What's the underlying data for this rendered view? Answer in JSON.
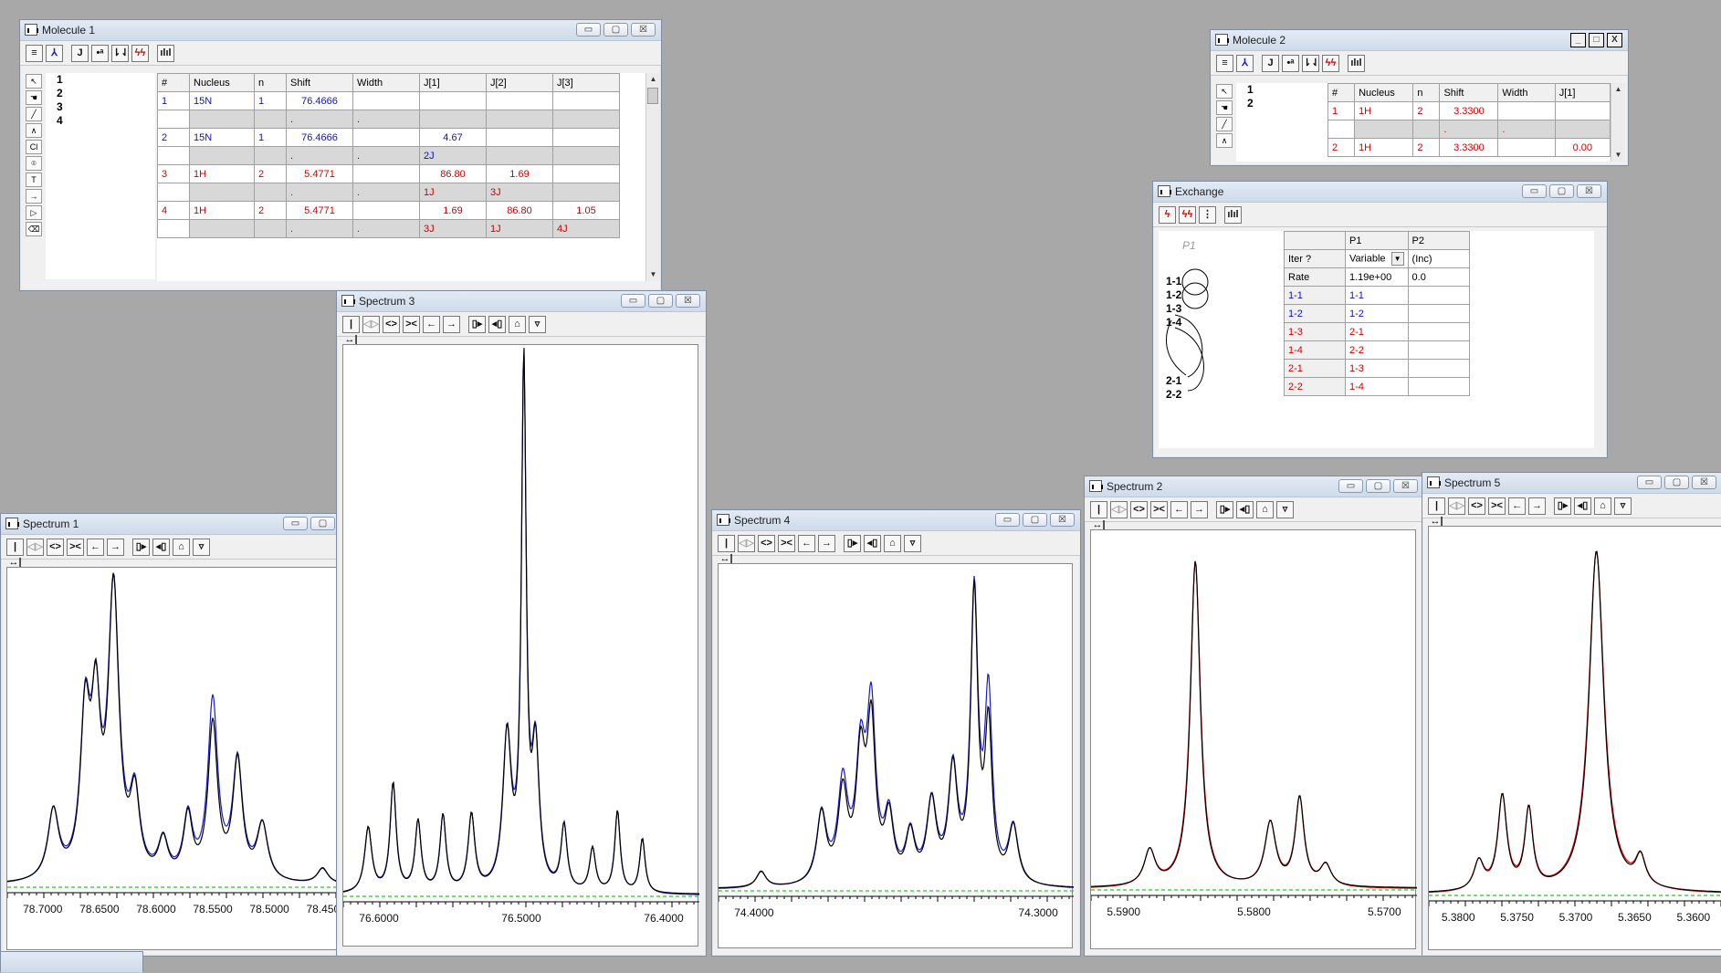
{
  "molecule1": {
    "title": "Molecule 1",
    "list": [
      "1",
      "2",
      "3",
      "4"
    ],
    "columns": [
      "#",
      "Nucleus",
      "n",
      "Shift",
      "Width",
      "J[1]",
      "J[2]",
      "J[3]"
    ],
    "rows": [
      {
        "cells": [
          "1",
          "15N",
          "1",
          "76.4666",
          "",
          "",
          "",
          ""
        ],
        "sub": [
          "",
          "",
          "",
          ".",
          ".",
          "",
          "",
          ""
        ],
        "color": "blue"
      },
      {
        "cells": [
          "2",
          "15N",
          "1",
          "76.4666",
          "",
          "4.67",
          "",
          ""
        ],
        "sub": [
          "",
          "",
          "",
          ".",
          ".",
          "2J",
          "",
          ""
        ],
        "color": "blue"
      },
      {
        "cells": [
          "3",
          "1H",
          "2",
          "5.4771",
          "",
          "86.80",
          "1.69",
          ""
        ],
        "sub": [
          "",
          "",
          "",
          ".",
          ".",
          "1J",
          "3J",
          ""
        ],
        "color": "red"
      },
      {
        "cells": [
          "4",
          "1H",
          "2",
          "5.4771",
          "",
          "1.69",
          "86.80",
          "1.05"
        ],
        "sub": [
          "",
          "",
          "",
          ".",
          ".",
          "3J",
          "1J",
          "4J"
        ],
        "color": "red"
      }
    ]
  },
  "molecule2": {
    "title": "Molecule 2",
    "list": [
      "1",
      "2"
    ],
    "columns": [
      "#",
      "Nucleus",
      "n",
      "Shift",
      "Width",
      "J[1]"
    ],
    "rows": [
      {
        "cells": [
          "1",
          "1H",
          "2",
          "3.3300",
          "",
          ""
        ],
        "sub": [
          "",
          "",
          "",
          ".",
          ".",
          ""
        ],
        "color": "red"
      },
      {
        "cells": [
          "2",
          "1H",
          "2",
          "3.3300",
          "",
          "0.00"
        ],
        "color": "red"
      }
    ]
  },
  "exchange": {
    "title": "Exchange",
    "diagram_label": "P1",
    "nodes": [
      "1-1",
      "1-2",
      "1-3",
      "1-4",
      "2-1",
      "2-2"
    ],
    "columns": [
      "",
      "P1",
      "P2"
    ],
    "rows": [
      {
        "label": "Iter ?",
        "p1": "Variable",
        "p2": "(Inc)",
        "color": ""
      },
      {
        "label": "Rate",
        "p1": "1.19e+00",
        "p2": "0.0",
        "color": ""
      },
      {
        "label": "1-1",
        "p1": "1-1",
        "p2": "",
        "color": "blue"
      },
      {
        "label": "1-2",
        "p1": "1-2",
        "p2": "",
        "color": "blue"
      },
      {
        "label": "1-3",
        "p1": "2-1",
        "p2": "",
        "color": "red"
      },
      {
        "label": "1-4",
        "p1": "2-2",
        "p2": "",
        "color": "red"
      },
      {
        "label": "2-1",
        "p1": "1-3",
        "p2": "",
        "color": "red"
      },
      {
        "label": "2-2",
        "p1": "1-4",
        "p2": "",
        "color": "red"
      }
    ]
  },
  "spectra": [
    {
      "title": "Spectrum 1",
      "ticks": [
        "78.7000",
        "78.6500",
        "78.6000",
        "78.5500",
        "78.5000",
        "78.4500"
      ],
      "fit_color": "#1a1ad0"
    },
    {
      "title": "Spectrum 3",
      "ticks": [
        "76.6000",
        "76.5000",
        "76.4000"
      ],
      "fit_color": "#1a1ad0"
    },
    {
      "title": "Spectrum 4",
      "ticks": [
        "74.4000",
        "74.3000"
      ],
      "fit_color": "#1a1ad0"
    },
    {
      "title": "Spectrum 2",
      "ticks": [
        "5.5900",
        "5.5800",
        "5.5700"
      ],
      "fit_color": "#e00000"
    },
    {
      "title": "Spectrum 5",
      "ticks": [
        "5.3800",
        "5.3750",
        "5.3700",
        "5.3650",
        "5.3600"
      ],
      "fit_color": "#e00000"
    }
  ],
  "colors": {
    "baseline": "#22cc22",
    "experimental": "#000000"
  },
  "window_buttons": {
    "minimize": "▭",
    "maximize": "▢",
    "close": "☒"
  }
}
